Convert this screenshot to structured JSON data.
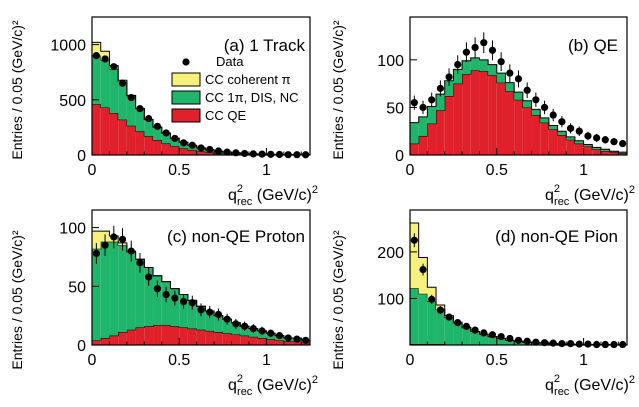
{
  "colors": {
    "coherent": "#f7f07a",
    "pion": "#1fb56a",
    "qe": "#e0202a",
    "data": "#000000"
  },
  "chart_data": [
    {
      "type": "bar",
      "title": "(a) 1 Track",
      "xlabel": "q²rec (GeV/c)²",
      "ylabel": "Entries / 0.05 (GeV/c)²",
      "xlim": [
        0,
        1.25
      ],
      "ylim": [
        0,
        1250
      ],
      "xticks": [
        "0",
        "0.5",
        "1"
      ],
      "yticks": [
        "0",
        "500",
        "1000"
      ],
      "legend": {
        "position": "top-right",
        "entries": [
          "Data",
          "CC coherent π",
          "CC 1π, DIS, NC",
          "CC QE"
        ]
      },
      "bin_width": 0.05,
      "series": [
        {
          "name": "CC QE",
          "values": [
            460,
            430,
            380,
            320,
            265,
            215,
            170,
            135,
            105,
            80,
            60,
            45,
            33,
            24,
            17,
            12,
            9,
            6,
            4,
            3,
            2,
            2,
            1,
            1,
            1
          ]
        },
        {
          "name": "CC 1π, DIS, NC",
          "values": [
            440,
            430,
            400,
            345,
            270,
            205,
            150,
            118,
            92,
            72,
            55,
            42,
            32,
            24,
            18,
            14,
            11,
            8,
            6,
            5,
            4,
            3,
            2,
            2,
            1
          ]
        },
        {
          "name": "CC coherent π",
          "values": [
            120,
            80,
            30,
            12,
            5,
            2,
            1,
            0,
            0,
            0,
            0,
            0,
            0,
            0,
            0,
            0,
            0,
            0,
            0,
            0,
            0,
            0,
            0,
            0,
            0
          ]
        },
        {
          "name": "Data",
          "values": [
            900,
            870,
            800,
            650,
            520,
            420,
            330,
            260,
            200,
            150,
            110,
            88,
            64,
            50,
            36,
            26,
            20,
            14,
            10,
            8,
            6,
            5,
            3,
            3,
            2
          ]
        }
      ]
    },
    {
      "type": "bar",
      "title": "(b) QE",
      "xlabel": "q²rec (GeV/c)²",
      "ylabel": "Entries / 0.05 (GeV/c)²",
      "xlim": [
        0,
        1.25
      ],
      "ylim": [
        0,
        145
      ],
      "xticks": [
        "0",
        "0.5",
        "1"
      ],
      "yticks": [
        "0",
        "50",
        "100"
      ],
      "bin_width": 0.05,
      "series": [
        {
          "name": "CC QE",
          "values": [
            12,
            20,
            33,
            47,
            62,
            75,
            85,
            89,
            88,
            84,
            76,
            67,
            58,
            50,
            42,
            34,
            27,
            21,
            16,
            12,
            9,
            6,
            4,
            3,
            2
          ]
        },
        {
          "name": "CC 1π, DIS, NC",
          "values": [
            22,
            20,
            18,
            17,
            16,
            15,
            14,
            13,
            12,
            11,
            10,
            9,
            8,
            7,
            6,
            5,
            4,
            4,
            3,
            3,
            2,
            2,
            2,
            1,
            1
          ]
        },
        {
          "name": "Data",
          "values": [
            55,
            50,
            58,
            70,
            82,
            95,
            108,
            113,
            118,
            110,
            98,
            86,
            80,
            68,
            58,
            50,
            42,
            35,
            28,
            25,
            20,
            18,
            16,
            14,
            12
          ]
        }
      ]
    },
    {
      "type": "bar",
      "title": "(c) non-QE Proton",
      "xlabel": "q²rec (GeV/c)²",
      "ylabel": "Entries / 0.05 (GeV/c)²",
      "xlim": [
        0,
        1.25
      ],
      "ylim": [
        0,
        115
      ],
      "xticks": [
        "0",
        "0.5",
        "1"
      ],
      "yticks": [
        "0",
        "50",
        "100"
      ],
      "bin_width": 0.05,
      "series": [
        {
          "name": "CC QE",
          "values": [
            4,
            6,
            8,
            11,
            13,
            15,
            16,
            17,
            17,
            16,
            15,
            14,
            13,
            12,
            11,
            10,
            9,
            8,
            7,
            6,
            5,
            4,
            3,
            3,
            2
          ]
        },
        {
          "name": "CC 1π, DIS, NC",
          "values": [
            78,
            82,
            80,
            74,
            66,
            58,
            50,
            42,
            37,
            32,
            28,
            24,
            20,
            17,
            14,
            12,
            10,
            8,
            7,
            6,
            5,
            4,
            3,
            3,
            2
          ]
        },
        {
          "name": "CC coherent π",
          "values": [
            15,
            9,
            5,
            2,
            1,
            0,
            0,
            0,
            0,
            0,
            0,
            0,
            0,
            0,
            0,
            0,
            0,
            0,
            0,
            0,
            0,
            0,
            0,
            0,
            0
          ]
        },
        {
          "name": "Data",
          "values": [
            78,
            85,
            92,
            90,
            80,
            70,
            58,
            48,
            43,
            40,
            37,
            36,
            30,
            28,
            26,
            22,
            18,
            16,
            14,
            12,
            10,
            8,
            6,
            5,
            4
          ]
        }
      ]
    },
    {
      "type": "bar",
      "title": "(d) non-QE Pion",
      "xlabel": "q²rec (GeV/c)²",
      "ylabel": "Entries / 0.05 (GeV/c)²",
      "xlim": [
        0,
        1.25
      ],
      "ylim": [
        0,
        290
      ],
      "xticks": [
        "0",
        "0.5",
        "1"
      ],
      "yticks": [
        "100",
        "200"
      ],
      "bin_width": 0.05,
      "series": [
        {
          "name": "CC QE",
          "values": [
            2,
            2,
            2,
            2,
            1,
            1,
            1,
            1,
            1,
            1,
            1,
            0,
            0,
            0,
            0,
            0,
            0,
            0,
            0,
            0,
            0,
            0,
            0,
            0,
            0
          ]
        },
        {
          "name": "CC 1π, DIS, NC",
          "values": [
            120,
            108,
            92,
            74,
            58,
            46,
            36,
            28,
            22,
            17,
            13,
            10,
            8,
            6,
            5,
            4,
            3,
            2,
            2,
            1,
            1,
            1,
            1,
            0,
            0
          ]
        },
        {
          "name": "CC coherent π",
          "values": [
            140,
            78,
            30,
            10,
            4,
            2,
            1,
            0,
            0,
            0,
            0,
            0,
            0,
            0,
            0,
            0,
            0,
            0,
            0,
            0,
            0,
            0,
            0,
            0,
            0
          ]
        },
        {
          "name": "Data",
          "values": [
            225,
            162,
            98,
            75,
            60,
            48,
            40,
            32,
            26,
            22,
            18,
            14,
            10,
            8,
            6,
            5,
            4,
            3,
            3,
            2,
            2,
            1,
            1,
            1,
            1
          ]
        }
      ]
    }
  ]
}
